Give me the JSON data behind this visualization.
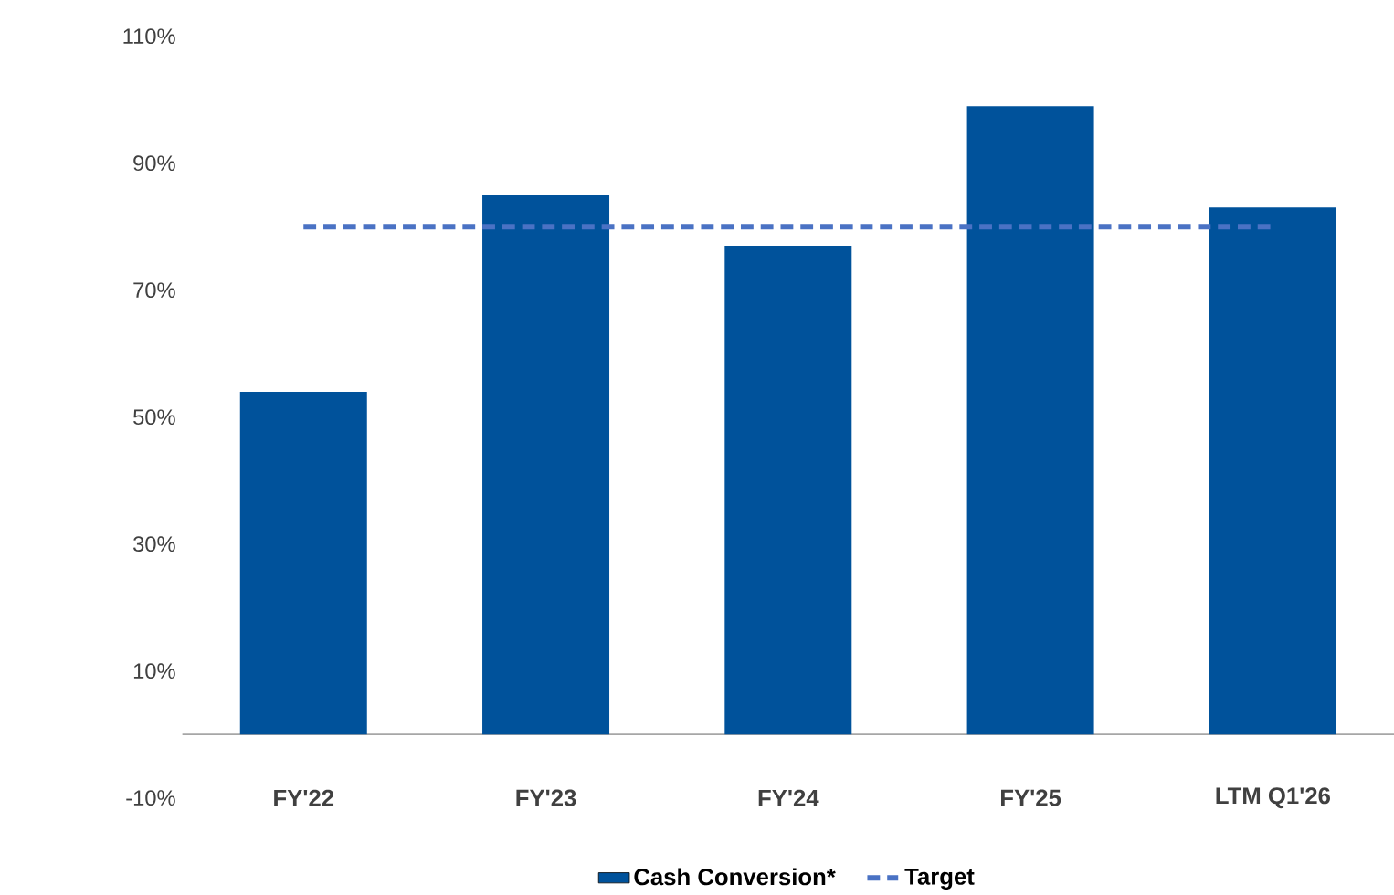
{
  "chart_data": {
    "type": "bar",
    "categories": [
      "FY'22",
      "FY'23",
      "FY'24",
      "FY'25",
      "LTM Q1'26"
    ],
    "series": [
      {
        "name": "Cash Conversion*",
        "color": "#00529b",
        "values": [
          54,
          85,
          77,
          99,
          83
        ]
      },
      {
        "name": "Target",
        "type": "line",
        "color": "#4a72c4",
        "line_style": "dashed",
        "marker": "none",
        "values": [
          80,
          80,
          80,
          80,
          80
        ]
      }
    ],
    "ylim": [
      -10,
      110
    ],
    "yticks": [
      {
        "value": -10,
        "label": "-10%"
      },
      {
        "value": 10,
        "label": "10%"
      },
      {
        "value": 30,
        "label": "30%"
      },
      {
        "value": 50,
        "label": "50%"
      },
      {
        "value": 70,
        "label": "70%"
      },
      {
        "value": 90,
        "label": "90%"
      },
      {
        "value": 110,
        "label": "110%"
      }
    ],
    "grid": false,
    "legend": "bottom"
  }
}
